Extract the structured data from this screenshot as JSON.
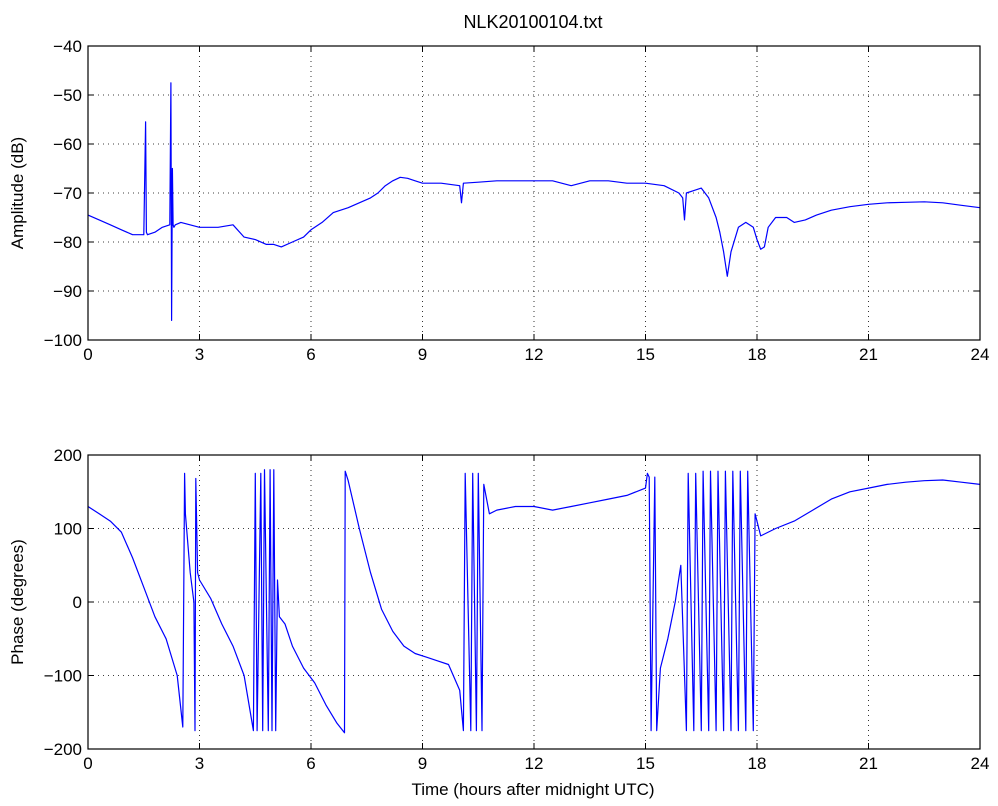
{
  "chart_data": [
    {
      "type": "line",
      "title": "NLK20100104.txt",
      "xlabel": "",
      "ylabel": "Amplitude (dB)",
      "xlim": [
        0,
        24
      ],
      "ylim": [
        -100,
        -40
      ],
      "xticks": [
        0,
        3,
        6,
        9,
        12,
        15,
        18,
        21,
        24
      ],
      "yticks": [
        -100,
        -90,
        -80,
        -70,
        -60,
        -50,
        -40
      ],
      "xtick_labels": [
        "0",
        "3",
        "6",
        "9",
        "12",
        "15",
        "18",
        "21",
        "24"
      ],
      "ytick_labels": [
        "−100",
        "−90",
        "−80",
        "−70",
        "−60",
        "−50",
        "−40"
      ],
      "grid": true,
      "series": [
        {
          "color": "#0000ff",
          "x": [
            0,
            0.3,
            0.6,
            0.9,
            1.2,
            1.5,
            1.55,
            1.57,
            1.6,
            1.8,
            2.0,
            2.2,
            2.23,
            2.25,
            2.27,
            2.29,
            2.31,
            2.35,
            2.5,
            3.0,
            3.5,
            3.9,
            4.2,
            4.5,
            4.8,
            5.0,
            5.2,
            5.5,
            5.8,
            6.0,
            6.3,
            6.6,
            7.0,
            7.3,
            7.6,
            7.8,
            8.0,
            8.2,
            8.4,
            8.6,
            8.8,
            9.0,
            9.5,
            10.0,
            10.05,
            10.1,
            10.5,
            11.0,
            11.5,
            12.0,
            12.5,
            13.0,
            13.5,
            14.0,
            14.5,
            15.0,
            15.5,
            15.9,
            16.0,
            16.05,
            16.1,
            16.3,
            16.5,
            16.7,
            16.9,
            17.0,
            17.1,
            17.2,
            17.3,
            17.5,
            17.7,
            17.9,
            18.0,
            18.1,
            18.2,
            18.3,
            18.5,
            18.8,
            19.0,
            19.3,
            19.6,
            20.0,
            20.5,
            21.0,
            21.5,
            22.0,
            22.5,
            23.0,
            23.5,
            24.0
          ],
          "y": [
            -74.5,
            -75.5,
            -76.5,
            -77.5,
            -78.5,
            -78.5,
            -55.5,
            -78,
            -78.5,
            -78,
            -77,
            -76.5,
            -47.5,
            -96,
            -65,
            -76.5,
            -77,
            -76.5,
            -76,
            -77,
            -77,
            -76.5,
            -79,
            -79.5,
            -80.5,
            -80.5,
            -81,
            -80,
            -79,
            -77.5,
            -76,
            -74,
            -73,
            -72,
            -71,
            -70,
            -68.5,
            -67.5,
            -66.8,
            -67,
            -67.5,
            -68,
            -68,
            -68.5,
            -72,
            -68,
            -67.8,
            -67.5,
            -67.5,
            -67.5,
            -67.5,
            -68.5,
            -67.5,
            -67.5,
            -68,
            -68,
            -68.5,
            -70,
            -71,
            -75.5,
            -70,
            -69.5,
            -69,
            -71,
            -75,
            -78,
            -82,
            -87,
            -82,
            -77,
            -76,
            -77,
            -79.5,
            -81.5,
            -81,
            -77,
            -75,
            -75,
            -76,
            -75.5,
            -74.5,
            -73.5,
            -72.8,
            -72.3,
            -72,
            -71.9,
            -71.8,
            -72,
            -72.5,
            -73
          ]
        }
      ]
    },
    {
      "type": "line",
      "title": "",
      "xlabel": "Time (hours after midnight UTC)",
      "ylabel": "Phase (degrees)",
      "xlim": [
        0,
        24
      ],
      "ylim": [
        -200,
        200
      ],
      "xticks": [
        0,
        3,
        6,
        9,
        12,
        15,
        18,
        21,
        24
      ],
      "yticks": [
        -200,
        -100,
        0,
        100,
        200
      ],
      "xtick_labels": [
        "0",
        "3",
        "6",
        "9",
        "12",
        "15",
        "18",
        "21",
        "24"
      ],
      "ytick_labels": [
        "−200",
        "−100",
        "0",
        "100",
        "200"
      ],
      "grid": true,
      "series": [
        {
          "color": "#0000ff",
          "x": [
            0,
            0.3,
            0.6,
            0.9,
            1.2,
            1.5,
            1.8,
            2.1,
            2.4,
            2.55,
            2.6,
            2.62,
            2.75,
            2.85,
            2.88,
            2.9,
            2.95,
            3.0,
            3.3,
            3.6,
            3.9,
            4.2,
            4.45,
            4.5,
            4.55,
            4.65,
            4.7,
            4.75,
            4.85,
            4.9,
            4.95,
            5.0,
            5.05,
            5.1,
            5.15,
            5.3,
            5.5,
            5.8,
            6.1,
            6.4,
            6.7,
            6.9,
            6.92,
            7.0,
            7.3,
            7.6,
            7.9,
            8.2,
            8.5,
            8.8,
            9.1,
            9.4,
            9.7,
            10.0,
            10.1,
            10.15,
            10.3,
            10.35,
            10.45,
            10.5,
            10.6,
            10.65,
            10.8,
            11.0,
            11.5,
            12.0,
            12.5,
            13.0,
            13.5,
            14.0,
            14.5,
            15.0,
            15.05,
            15.1,
            15.15,
            15.25,
            15.3,
            15.4,
            15.6,
            15.8,
            15.95,
            16.1,
            16.15,
            16.3,
            16.35,
            16.5,
            16.55,
            16.7,
            16.75,
            16.9,
            16.95,
            17.1,
            17.15,
            17.3,
            17.35,
            17.5,
            17.55,
            17.7,
            17.75,
            17.9,
            17.95,
            18.1,
            18.5,
            19.0,
            19.5,
            20.0,
            20.5,
            21.0,
            21.5,
            22.0,
            22.5,
            23.0,
            23.5,
            24.0
          ],
          "y": [
            130,
            120,
            110,
            95,
            60,
            20,
            -20,
            -50,
            -100,
            -170,
            175,
            120,
            40,
            0,
            -175,
            168,
            40,
            30,
            5,
            -30,
            -60,
            -100,
            -175,
            175,
            -175,
            175,
            -175,
            180,
            -175,
            180,
            -175,
            180,
            -175,
            30,
            -20,
            -30,
            -60,
            -90,
            -110,
            -140,
            -165,
            -178,
            178,
            165,
            100,
            40,
            -10,
            -40,
            -60,
            -70,
            -75,
            -80,
            -85,
            -120,
            -175,
            175,
            -175,
            175,
            -175,
            175,
            -175,
            160,
            120,
            125,
            130,
            130,
            125,
            130,
            135,
            140,
            145,
            155,
            175,
            170,
            -175,
            170,
            -175,
            -90,
            -50,
            0,
            50,
            -175,
            175,
            -175,
            175,
            -175,
            178,
            -175,
            178,
            -175,
            178,
            -175,
            178,
            -175,
            178,
            -175,
            178,
            -175,
            178,
            -175,
            120,
            90,
            100,
            110,
            125,
            140,
            150,
            155,
            160,
            163,
            165,
            166,
            163,
            160
          ]
        }
      ]
    }
  ]
}
